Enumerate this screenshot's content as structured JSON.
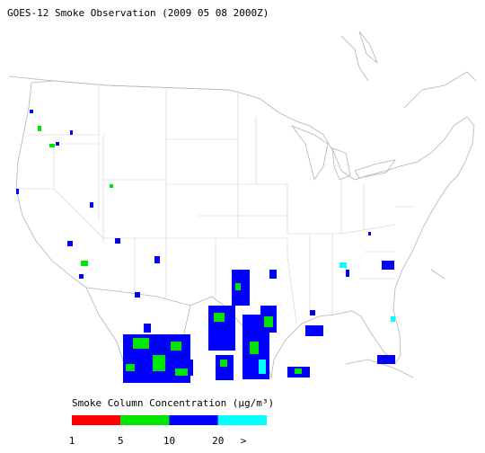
{
  "title": "GOES-12 Smoke Observation (2009 05 08  2000Z)",
  "legend": {
    "title": "Smoke Column Concentration (μg/m³)",
    "ticks": [
      "1",
      "5",
      "10",
      "20",
      ">"
    ],
    "colors": [
      "#ff0000",
      "#00e600",
      "#0000ff",
      "#00ffff"
    ]
  }
}
